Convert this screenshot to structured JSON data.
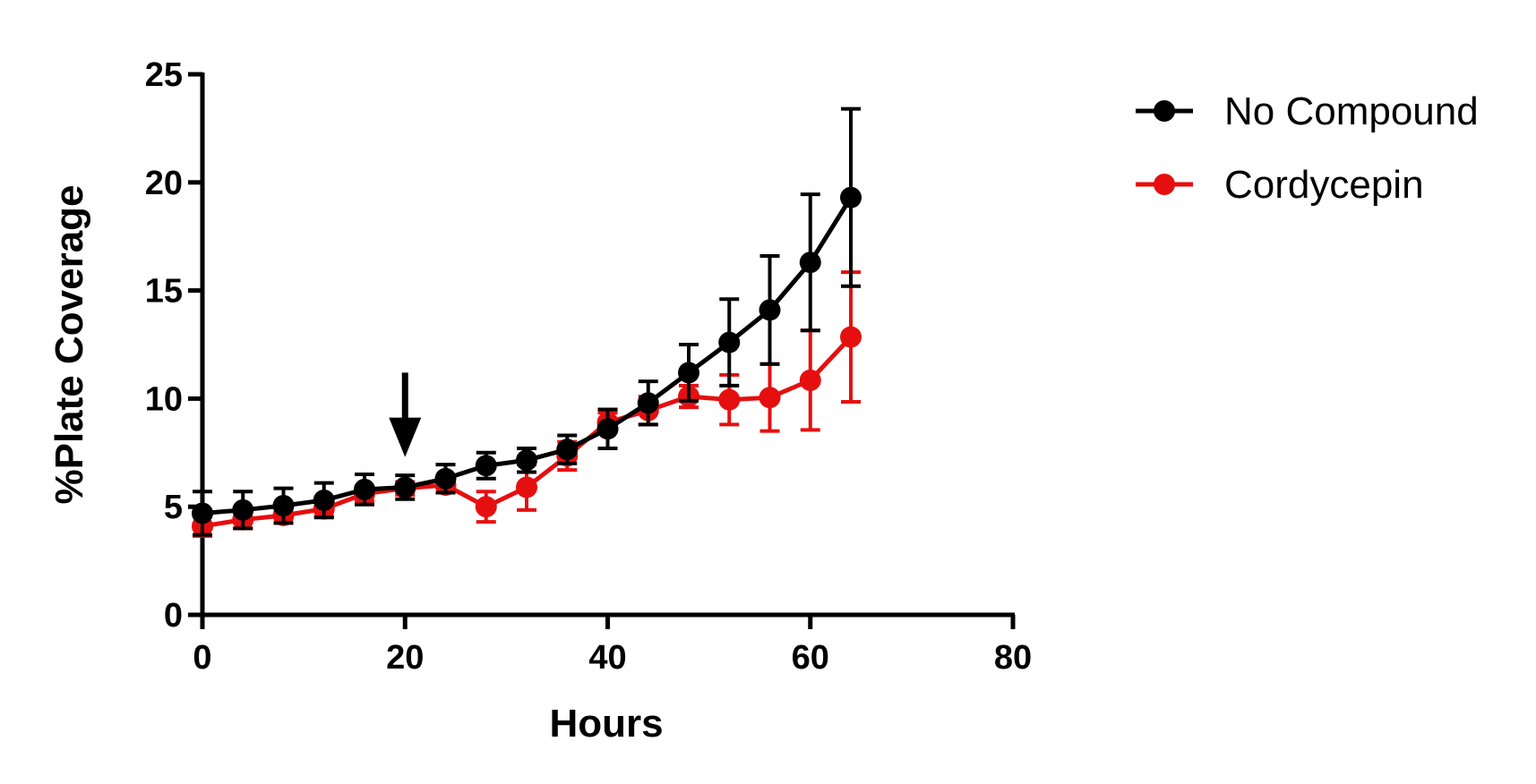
{
  "chart_data": {
    "type": "line",
    "title": "",
    "xlabel": "Hours",
    "ylabel": "%Plate Coverage",
    "xlim": [
      0,
      80
    ],
    "ylim": [
      0,
      25
    ],
    "xticks": [
      0,
      20,
      40,
      60,
      80
    ],
    "yticks": [
      0,
      5,
      10,
      15,
      20,
      25
    ],
    "grid": false,
    "legend_position": "top-right",
    "annotations": [
      {
        "type": "arrow",
        "x": 20,
        "y_from": 11.2,
        "y_to": 7.3,
        "color": "#000000"
      }
    ],
    "series": [
      {
        "name": "No Compound",
        "color": "#000000",
        "x": [
          0,
          4,
          8,
          12,
          16,
          20,
          24,
          28,
          32,
          36,
          40,
          44,
          48,
          52,
          56,
          60,
          64
        ],
        "y": [
          4.7,
          4.85,
          5.05,
          5.3,
          5.8,
          5.9,
          6.3,
          6.9,
          7.15,
          7.65,
          8.6,
          9.8,
          11.2,
          12.6,
          14.1,
          16.3,
          19.3
        ],
        "error": [
          1.0,
          0.85,
          0.8,
          0.8,
          0.7,
          0.55,
          0.65,
          0.6,
          0.55,
          0.65,
          0.9,
          1.0,
          1.3,
          2.0,
          2.5,
          3.15,
          4.1
        ]
      },
      {
        "name": "Cordycepin",
        "color": "#e60f0f",
        "x": [
          0,
          4,
          8,
          12,
          16,
          20,
          24,
          28,
          32,
          36,
          40,
          44,
          48,
          52,
          56,
          60,
          64
        ],
        "y": [
          4.1,
          4.4,
          4.6,
          4.9,
          5.6,
          5.85,
          6.0,
          5.0,
          5.9,
          7.35,
          8.9,
          9.45,
          10.1,
          9.95,
          10.05,
          10.85,
          12.85
        ],
        "error": [
          0.45,
          0.4,
          0.35,
          0.35,
          0.35,
          0.3,
          0.35,
          0.7,
          1.05,
          0.65,
          0.45,
          0.65,
          0.5,
          1.15,
          1.55,
          2.3,
          3.0
        ]
      }
    ]
  }
}
